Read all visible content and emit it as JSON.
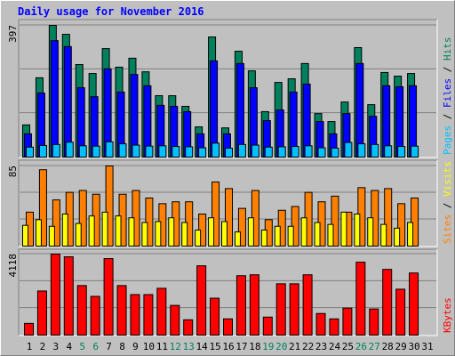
{
  "chart_data": {
    "type": "bar",
    "title": "Daily usage for November 2016",
    "categories": [
      "1",
      "2",
      "3",
      "4",
      "5",
      "6",
      "7",
      "8",
      "9",
      "10",
      "11",
      "12",
      "13",
      "14",
      "15",
      "16",
      "17",
      "18",
      "19",
      "20",
      "21",
      "22",
      "23",
      "24",
      "25",
      "26",
      "27",
      "28",
      "29",
      "30",
      "31"
    ],
    "label_colors": [
      "#000",
      "#000",
      "#000",
      "#000",
      "#00805c",
      "#00805c",
      "#000",
      "#000",
      "#000",
      "#000",
      "#000",
      "#00805c",
      "#00805c",
      "#000",
      "#000",
      "#000",
      "#000",
      "#000",
      "#00805c",
      "#00805c",
      "#000",
      "#000",
      "#000",
      "#000",
      "#000",
      "#00805c",
      "#00805c",
      "#000",
      "#000",
      "#000",
      "#000"
    ],
    "panels": [
      {
        "ylim": [
          0,
          397
        ],
        "yticks": [
          397
        ],
        "series": [
          {
            "name": "Hits",
            "color": "#00805c",
            "values": [
              97,
              239,
              397,
              370,
              279,
              252,
              327,
              271,
              298,
              257,
              185,
              185,
              153,
              91,
              362,
              88,
              319,
              260,
              137,
              225,
              236,
              282,
              131,
              107,
              166,
              330,
              158,
              255,
              244,
              252,
              0
            ]
          },
          {
            "name": "Files",
            "color": "#0000ff",
            "values": [
              70,
              193,
              351,
              333,
              209,
              182,
              266,
              196,
              249,
              215,
              156,
              153,
              137,
              70,
              290,
              70,
              282,
              209,
              110,
              142,
              196,
              220,
              107,
              70,
              131,
              282,
              123,
              215,
              212,
              215,
              0
            ]
          },
          {
            "name": "Pages",
            "color": "#00c0ff",
            "values": [
              30,
              35,
              38,
              45,
              34,
              33,
              46,
              40,
              36,
              33,
              34,
              32,
              31,
              28,
              42,
              27,
              38,
              36,
              30,
              31,
              32,
              34,
              28,
              27,
              44,
              40,
              38,
              34,
              32,
              33,
              0
            ]
          }
        ]
      },
      {
        "ylim": [
          0,
          85
        ],
        "yticks": [
          85
        ],
        "series": [
          {
            "name": "Visits",
            "color": "#ffff00",
            "values": [
              22,
              28,
              21,
              34,
              24,
              32,
              36,
              32,
              30,
              25,
              26,
              30,
              25,
              17,
              30,
              26,
              15,
              30,
              17,
              21,
              21,
              30,
              25,
              23,
              36,
              34,
              30,
              23,
              19,
              25,
              0
            ]
          },
          {
            "name": "Sites",
            "color": "#ff8000",
            "values": [
              36,
              81,
              49,
              57,
              59,
              55,
              85,
              55,
              59,
              51,
              45,
              47,
              47,
              34,
              68,
              61,
              40,
              59,
              28,
              38,
              42,
              57,
              47,
              53,
              36,
              62,
              59,
              61,
              45,
              51,
              0
            ]
          }
        ]
      },
      {
        "ylim": [
          0,
          4118
        ],
        "yticks": [
          4118
        ],
        "series": [
          {
            "name": "KBytes",
            "color": "#ff0000",
            "values": [
              595,
              2242,
              4118,
              3981,
              2517,
              1967,
              3890,
              2517,
              2059,
              2059,
              2379,
              1510,
              778,
              3523,
              1876,
              824,
              3020,
              3066,
              915,
              2608,
              2608,
              3066,
              1098,
              824,
              1373,
              3706,
              1327,
              3340,
              2334,
              3157,
              0
            ]
          }
        ]
      }
    ]
  }
}
